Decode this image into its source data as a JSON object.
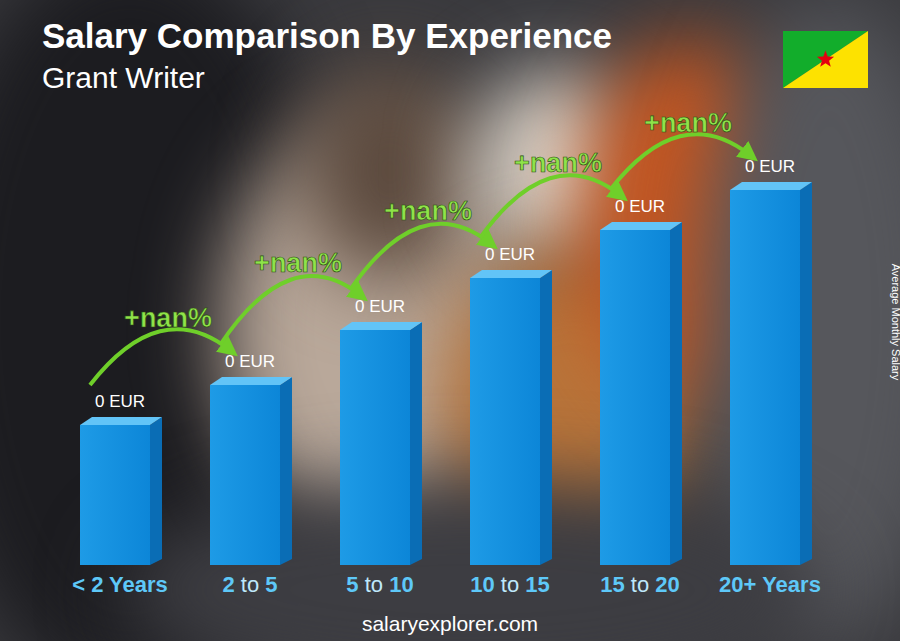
{
  "chart_data": {
    "type": "bar",
    "title": "Salary Comparison By Experience",
    "subtitle": "Grant Writer",
    "categories": [
      "< 2 Years",
      "2 to 5",
      "5 to 10",
      "10 to 15",
      "15 to 20",
      "20+ Years"
    ],
    "values": [
      0,
      0,
      0,
      0,
      0,
      0
    ],
    "value_labels": [
      "0 EUR",
      "0 EUR",
      "0 EUR",
      "0 EUR",
      "0 EUR",
      "0 EUR"
    ],
    "data_labels": true,
    "tick_labels": "x",
    "color": "#1e9be6",
    "y_label": "Average Monthly Salary",
    "annotations": [
      "+nan%",
      "+nan%",
      "+nan%",
      "+nan%",
      "+nan%"
    ],
    "source": "salaryexplorer.com"
  }
}
